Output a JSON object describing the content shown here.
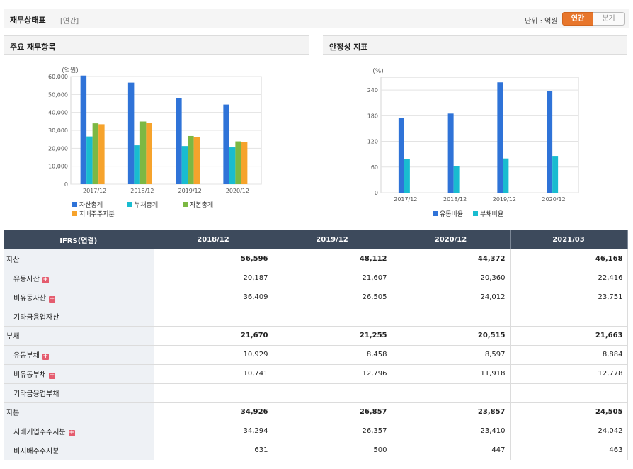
{
  "header": {
    "title": "재무상태표",
    "period_label": "[연간]",
    "unit_label": "단위 : 억원",
    "toggle": [
      "연간",
      "분기"
    ]
  },
  "panels": {
    "left_title": "주요 재무항목",
    "right_title": "안정성 지표"
  },
  "chart_data": [
    {
      "type": "bar",
      "title": "주요 재무항목",
      "ylabel": "(억원)",
      "categories": [
        "2017/12",
        "2018/12",
        "2019/12",
        "2020/12"
      ],
      "ylim": [
        0,
        60000
      ],
      "yticks": [
        0,
        10000,
        20000,
        30000,
        40000,
        50000,
        60000
      ],
      "ytick_labels": [
        "0",
        "10,000",
        "20,000",
        "30,000",
        "40,000",
        "50,000",
        "60,000"
      ],
      "series": [
        {
          "name": "자산총계",
          "color": "#2f73d8",
          "values": [
            60500,
            56596,
            48112,
            44372
          ]
        },
        {
          "name": "부채총계",
          "color": "#19bcd0",
          "values": [
            26600,
            21670,
            21255,
            20515
          ]
        },
        {
          "name": "자본총계",
          "color": "#7cb843",
          "values": [
            33900,
            34926,
            26857,
            23857
          ]
        },
        {
          "name": "지배주주지분",
          "color": "#f6a32c",
          "values": [
            33400,
            34294,
            26357,
            23410
          ]
        }
      ],
      "legend_position": "bottom"
    },
    {
      "type": "bar",
      "title": "안정성 지표",
      "ylabel": "(%)",
      "categories": [
        "2017/12",
        "2018/12",
        "2019/12",
        "2020/12"
      ],
      "ylim": [
        0,
        270
      ],
      "yticks": [
        0,
        60,
        120,
        180,
        240
      ],
      "ytick_labels": [
        "0",
        "60",
        "120",
        "180",
        "240"
      ],
      "series": [
        {
          "name": "유동비율",
          "color": "#2f73d8",
          "values": [
            175,
            185,
            258,
            238
          ]
        },
        {
          "name": "부채비율",
          "color": "#19bcd0",
          "values": [
            78,
            62,
            80,
            86
          ]
        }
      ],
      "legend_position": "bottom"
    }
  ],
  "table": {
    "header": [
      "IFRS(연결)",
      "2018/12",
      "2019/12",
      "2020/12",
      "2021/03"
    ],
    "rows": [
      {
        "label": "자산",
        "level": "main",
        "plus": false,
        "values": [
          "56,596",
          "48,112",
          "44,372",
          "46,168"
        ]
      },
      {
        "label": "유동자산",
        "level": "sub",
        "plus": true,
        "values": [
          "20,187",
          "21,607",
          "20,360",
          "22,416"
        ]
      },
      {
        "label": "비유동자산",
        "level": "sub",
        "plus": true,
        "values": [
          "36,409",
          "26,505",
          "24,012",
          "23,751"
        ]
      },
      {
        "label": "기타금융업자산",
        "level": "sub",
        "plus": false,
        "values": [
          "",
          "",
          "",
          ""
        ]
      },
      {
        "label": "부채",
        "level": "main",
        "plus": false,
        "values": [
          "21,670",
          "21,255",
          "20,515",
          "21,663"
        ]
      },
      {
        "label": "유동부채",
        "level": "sub",
        "plus": true,
        "values": [
          "10,929",
          "8,458",
          "8,597",
          "8,884"
        ]
      },
      {
        "label": "비유동부채",
        "level": "sub",
        "plus": true,
        "values": [
          "10,741",
          "12,796",
          "11,918",
          "12,778"
        ]
      },
      {
        "label": "기타금융업부채",
        "level": "sub",
        "plus": false,
        "values": [
          "",
          "",
          "",
          ""
        ]
      },
      {
        "label": "자본",
        "level": "main",
        "plus": false,
        "values": [
          "34,926",
          "26,857",
          "23,857",
          "24,505"
        ]
      },
      {
        "label": "지배기업주주지분",
        "level": "sub",
        "plus": true,
        "values": [
          "34,294",
          "26,357",
          "23,410",
          "24,042"
        ]
      },
      {
        "label": "비지배주주지분",
        "level": "sub",
        "plus": false,
        "values": [
          "631",
          "500",
          "447",
          "463"
        ]
      }
    ]
  }
}
